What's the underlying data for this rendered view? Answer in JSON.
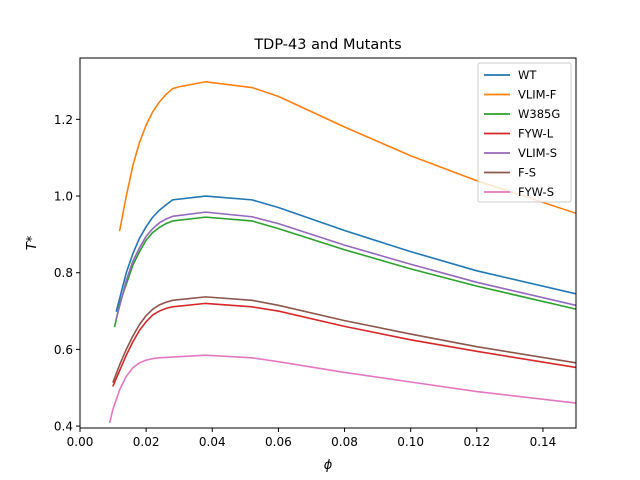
{
  "chart_data": {
    "type": "line",
    "title": "TDP-43 and Mutants",
    "xlabel": "ϕ",
    "ylabel": "T*",
    "xlim": [
      0.0,
      0.15
    ],
    "ylim": [
      0.395,
      1.36
    ],
    "xticks": [
      0.0,
      0.02,
      0.04,
      0.06,
      0.08,
      0.1,
      0.12,
      0.14
    ],
    "xtick_labels": [
      "0.00",
      "0.02",
      "0.04",
      "0.06",
      "0.08",
      "0.10",
      "0.12",
      "0.14"
    ],
    "yticks": [
      0.4,
      0.6,
      0.8,
      1.0,
      1.2
    ],
    "ytick_labels": [
      "0.4",
      "0.6",
      "0.8",
      "1.0",
      "1.2"
    ],
    "grid": false,
    "legend_position": "top-right",
    "series": [
      {
        "name": "WT",
        "color": "#1f77b4",
        "x": [
          0.011,
          0.0125,
          0.014,
          0.016,
          0.018,
          0.02,
          0.022,
          0.024,
          0.026,
          0.028,
          0.038,
          0.052,
          0.06,
          0.08,
          0.1,
          0.12,
          0.15
        ],
        "y": [
          0.7,
          0.75,
          0.8,
          0.85,
          0.89,
          0.92,
          0.945,
          0.963,
          0.977,
          0.99,
          1.0,
          0.99,
          0.97,
          0.91,
          0.855,
          0.805,
          0.745
        ]
      },
      {
        "name": "VLIM-F",
        "color": "#ff7f0e",
        "x": [
          0.012,
          0.014,
          0.016,
          0.018,
          0.02,
          0.022,
          0.024,
          0.026,
          0.028,
          0.03,
          0.038,
          0.052,
          0.06,
          0.08,
          0.1,
          0.12,
          0.15
        ],
        "y": [
          0.91,
          1.0,
          1.08,
          1.14,
          1.185,
          1.22,
          1.245,
          1.265,
          1.28,
          1.285,
          1.298,
          1.283,
          1.26,
          1.18,
          1.105,
          1.04,
          0.955
        ]
      },
      {
        "name": "W385G",
        "color": "#2ca02c",
        "x": [
          0.0105,
          0.012,
          0.014,
          0.016,
          0.018,
          0.02,
          0.022,
          0.024,
          0.026,
          0.028,
          0.038,
          0.052,
          0.06,
          0.08,
          0.1,
          0.12,
          0.15
        ],
        "y": [
          0.66,
          0.72,
          0.77,
          0.82,
          0.855,
          0.885,
          0.905,
          0.918,
          0.928,
          0.935,
          0.945,
          0.935,
          0.915,
          0.86,
          0.81,
          0.765,
          0.705
        ]
      },
      {
        "name": "FYW-L",
        "color": "#d62728",
        "x": [
          0.01,
          0.012,
          0.014,
          0.016,
          0.018,
          0.02,
          0.022,
          0.024,
          0.026,
          0.028,
          0.038,
          0.052,
          0.06,
          0.08,
          0.1,
          0.12,
          0.15
        ],
        "y": [
          0.505,
          0.545,
          0.585,
          0.62,
          0.65,
          0.672,
          0.69,
          0.7,
          0.707,
          0.711,
          0.72,
          0.711,
          0.7,
          0.66,
          0.625,
          0.595,
          0.553
        ]
      },
      {
        "name": "VLIM-S",
        "color": "#9467bd",
        "x": [
          0.011,
          0.0125,
          0.014,
          0.016,
          0.018,
          0.02,
          0.022,
          0.024,
          0.026,
          0.028,
          0.038,
          0.052,
          0.06,
          0.08,
          0.1,
          0.12,
          0.15
        ],
        "y": [
          0.68,
          0.73,
          0.78,
          0.83,
          0.865,
          0.895,
          0.915,
          0.93,
          0.94,
          0.947,
          0.958,
          0.946,
          0.928,
          0.872,
          0.822,
          0.775,
          0.715
        ]
      },
      {
        "name": "F-S",
        "color": "#8c564b",
        "x": [
          0.01,
          0.012,
          0.014,
          0.016,
          0.018,
          0.02,
          0.022,
          0.024,
          0.026,
          0.028,
          0.038,
          0.052,
          0.06,
          0.08,
          0.1,
          0.12,
          0.15
        ],
        "y": [
          0.515,
          0.56,
          0.6,
          0.635,
          0.665,
          0.688,
          0.705,
          0.716,
          0.723,
          0.728,
          0.737,
          0.728,
          0.715,
          0.675,
          0.64,
          0.607,
          0.565
        ]
      },
      {
        "name": "FYW-S",
        "color": "#e377c2",
        "x": [
          0.009,
          0.01,
          0.012,
          0.014,
          0.016,
          0.018,
          0.02,
          0.022,
          0.024,
          0.026,
          0.028,
          0.038,
          0.052,
          0.06,
          0.08,
          0.1,
          0.12,
          0.15
        ],
        "y": [
          0.41,
          0.445,
          0.495,
          0.53,
          0.552,
          0.565,
          0.572,
          0.576,
          0.578,
          0.579,
          0.58,
          0.585,
          0.578,
          0.568,
          0.54,
          0.515,
          0.49,
          0.46
        ]
      }
    ]
  }
}
